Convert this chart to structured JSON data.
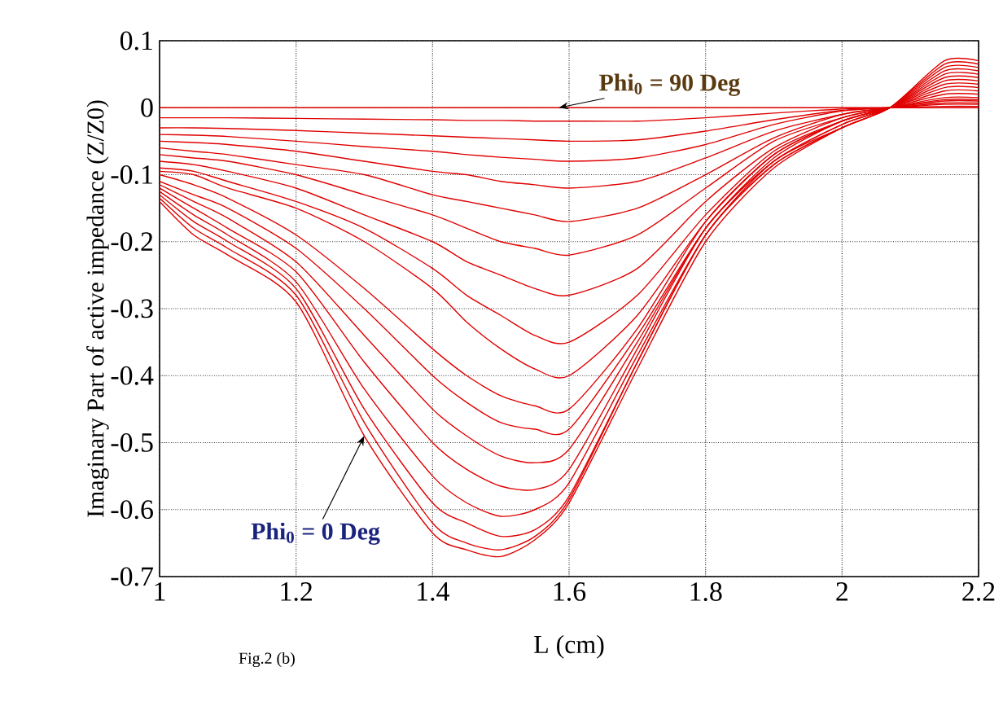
{
  "chart_data": {
    "type": "line",
    "xlabel": "L (cm)",
    "ylabel": "Imaginary Part of active impedance (Z/Z0)",
    "x": [
      1.0,
      1.05,
      1.1,
      1.2,
      1.3,
      1.4,
      1.45,
      1.5,
      1.55,
      1.6,
      1.7,
      1.8,
      1.9,
      2.0,
      2.07,
      2.15,
      2.2
    ],
    "xlim": [
      1,
      2.2
    ],
    "ylim": [
      -0.7,
      0.1
    ],
    "xticks": [
      1,
      1.2,
      1.4,
      1.6,
      1.8,
      2,
      2.2
    ],
    "yticks": [
      -0.7,
      -0.6,
      -0.5,
      -0.4,
      -0.3,
      -0.2,
      -0.1,
      0,
      0.1
    ],
    "grid": true,
    "series": [
      {
        "color": "#e00000",
        "values": [
          -0.14,
          -0.19,
          -0.22,
          -0.29,
          -0.49,
          -0.635,
          -0.66,
          -0.67,
          -0.645,
          -0.59,
          -0.39,
          -0.2,
          -0.09,
          -0.03,
          0,
          0.07,
          0.07
        ]
      },
      {
        "color": "#e00000",
        "values": [
          -0.135,
          -0.18,
          -0.21,
          -0.28,
          -0.47,
          -0.62,
          -0.65,
          -0.66,
          -0.64,
          -0.585,
          -0.38,
          -0.19,
          -0.085,
          -0.03,
          0,
          0.065,
          0.065
        ]
      },
      {
        "color": "#e00000",
        "values": [
          -0.13,
          -0.17,
          -0.2,
          -0.27,
          -0.45,
          -0.59,
          -0.62,
          -0.64,
          -0.63,
          -0.58,
          -0.38,
          -0.19,
          -0.085,
          -0.03,
          0,
          0.06,
          0.06
        ]
      },
      {
        "color": "#e00000",
        "values": [
          -0.125,
          -0.16,
          -0.19,
          -0.26,
          -0.42,
          -0.55,
          -0.59,
          -0.61,
          -0.6,
          -0.56,
          -0.37,
          -0.19,
          -0.08,
          -0.03,
          0,
          0.055,
          0.055
        ]
      },
      {
        "color": "#e00000",
        "values": [
          -0.12,
          -0.15,
          -0.18,
          -0.245,
          -0.38,
          -0.5,
          -0.54,
          -0.565,
          -0.57,
          -0.54,
          -0.36,
          -0.18,
          -0.08,
          -0.025,
          0,
          0.05,
          0.05
        ]
      },
      {
        "color": "#e00000",
        "values": [
          -0.115,
          -0.14,
          -0.165,
          -0.23,
          -0.34,
          -0.45,
          -0.49,
          -0.52,
          -0.53,
          -0.51,
          -0.35,
          -0.18,
          -0.08,
          -0.025,
          0,
          0.045,
          0.045
        ]
      },
      {
        "color": "#e00000",
        "values": [
          -0.11,
          -0.13,
          -0.15,
          -0.21,
          -0.3,
          -0.4,
          -0.44,
          -0.47,
          -0.48,
          -0.48,
          -0.34,
          -0.18,
          -0.075,
          -0.02,
          0,
          0.04,
          0.04
        ]
      },
      {
        "color": "#e00000",
        "values": [
          -0.1,
          -0.115,
          -0.135,
          -0.19,
          -0.27,
          -0.36,
          -0.4,
          -0.43,
          -0.445,
          -0.45,
          -0.33,
          -0.17,
          -0.07,
          -0.02,
          0,
          0.035,
          0.035
        ]
      },
      {
        "color": "#e00000",
        "values": [
          -0.095,
          -0.1,
          -0.12,
          -0.15,
          -0.2,
          -0.27,
          -0.32,
          -0.36,
          -0.39,
          -0.4,
          -0.31,
          -0.17,
          -0.07,
          -0.02,
          0,
          0.03,
          0.03
        ]
      },
      {
        "color": "#e00000",
        "values": [
          -0.09,
          -0.095,
          -0.11,
          -0.14,
          -0.18,
          -0.24,
          -0.28,
          -0.31,
          -0.34,
          -0.35,
          -0.28,
          -0.16,
          -0.065,
          -0.02,
          0,
          0.025,
          0.025
        ]
      },
      {
        "color": "#e00000",
        "values": [
          -0.08,
          -0.085,
          -0.095,
          -0.12,
          -0.16,
          -0.2,
          -0.23,
          -0.25,
          -0.27,
          -0.28,
          -0.24,
          -0.14,
          -0.06,
          -0.015,
          0,
          0.02,
          0.02
        ]
      },
      {
        "color": "#e00000",
        "values": [
          -0.07,
          -0.075,
          -0.08,
          -0.1,
          -0.13,
          -0.16,
          -0.18,
          -0.2,
          -0.21,
          -0.22,
          -0.19,
          -0.12,
          -0.05,
          -0.015,
          0,
          0.015,
          0.015
        ]
      },
      {
        "color": "#e00000",
        "values": [
          -0.06,
          -0.065,
          -0.07,
          -0.085,
          -0.1,
          -0.13,
          -0.14,
          -0.15,
          -0.16,
          -0.17,
          -0.15,
          -0.1,
          -0.045,
          -0.01,
          0,
          0.012,
          0.012
        ]
      },
      {
        "color": "#e00000",
        "values": [
          -0.05,
          -0.052,
          -0.055,
          -0.065,
          -0.08,
          -0.095,
          -0.1,
          -0.11,
          -0.115,
          -0.12,
          -0.11,
          -0.075,
          -0.035,
          -0.01,
          0,
          0.01,
          0.01
        ]
      },
      {
        "color": "#e00000",
        "values": [
          -0.04,
          -0.041,
          -0.043,
          -0.05,
          -0.058,
          -0.065,
          -0.07,
          -0.074,
          -0.077,
          -0.08,
          -0.075,
          -0.055,
          -0.025,
          -0.005,
          0,
          0.007,
          0.007
        ]
      },
      {
        "color": "#e00000",
        "values": [
          -0.03,
          -0.03,
          -0.031,
          -0.034,
          -0.038,
          -0.042,
          -0.044,
          -0.046,
          -0.048,
          -0.05,
          -0.048,
          -0.035,
          -0.018,
          -0.004,
          0,
          0.005,
          0.005
        ]
      },
      {
        "color": "#e00000",
        "values": [
          -0.015,
          -0.015,
          -0.015,
          -0.016,
          -0.017,
          -0.018,
          -0.019,
          -0.019,
          -0.02,
          -0.02,
          -0.02,
          -0.015,
          -0.008,
          -0.002,
          0,
          0.002,
          0.002
        ]
      },
      {
        "color": "#e00000",
        "values": [
          0,
          0,
          0,
          0,
          0,
          0,
          0,
          0,
          0,
          0,
          0,
          0,
          0,
          0,
          0,
          0,
          0
        ]
      }
    ],
    "annotations": [
      {
        "text": "Phi$_{0}$ = 90 Deg",
        "x": 1.585,
        "y": 0
      },
      {
        "text": "Phi$_{0}$ = 0 Deg",
        "x": 1.3,
        "y": -0.49
      },
      "Fig.2 (b)"
    ]
  }
}
